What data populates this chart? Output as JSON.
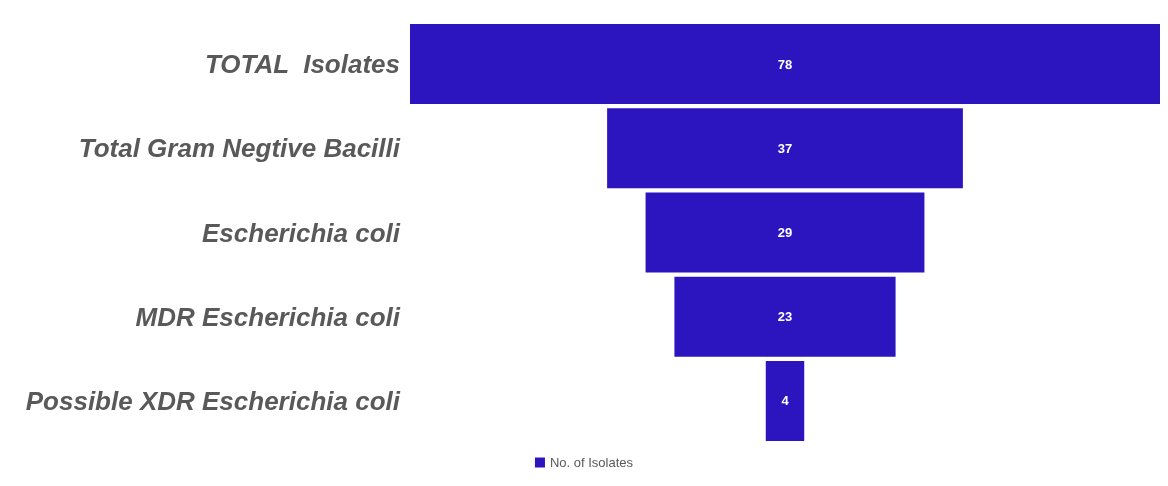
{
  "chart_data": {
    "type": "other",
    "categories": [
      "TOTAL  Isolates",
      "Total Gram Negtive Bacilli",
      "Escherichia coli",
      "MDR Escherichia coli",
      "Possible XDR Escherichia coli"
    ],
    "series": [
      {
        "name": "No. of Isolates",
        "color": "#2c14bf",
        "values": [
          78,
          37,
          29,
          23,
          4
        ]
      }
    ],
    "data_labels": true,
    "legend": "bottom"
  }
}
